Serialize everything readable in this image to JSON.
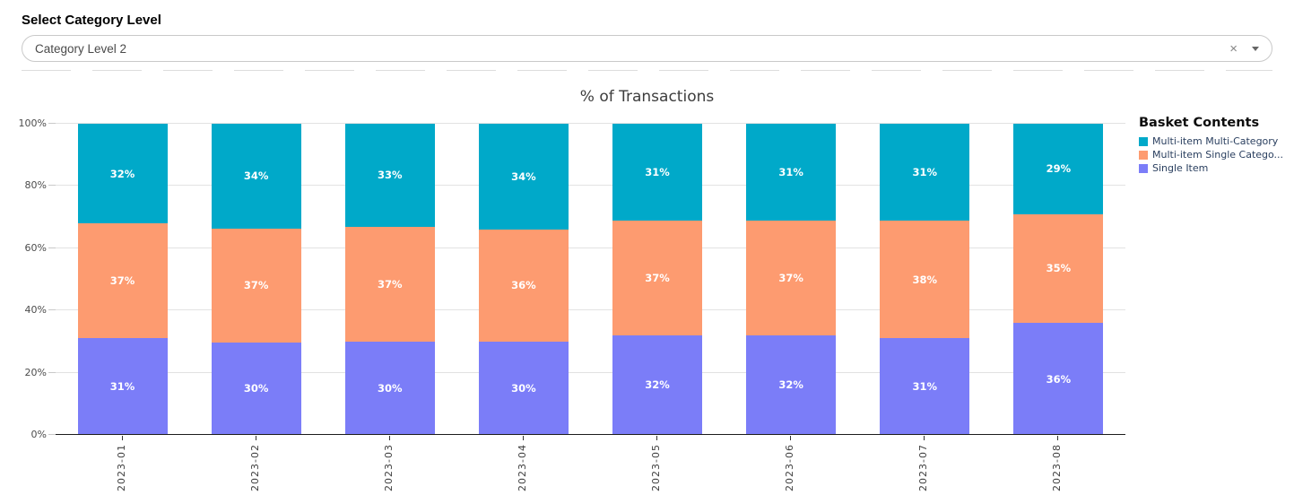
{
  "header": {
    "label": "Select Category Level",
    "dropdown": {
      "value": "Category Level 2",
      "clear_icon": "×"
    }
  },
  "chart_data": {
    "type": "bar",
    "stacked": true,
    "orientation": "vertical",
    "title": "% of Transactions",
    "legend_title": "Basket Contents",
    "legend_position": "right",
    "categories": [
      "2023-01",
      "2023-02",
      "2023-03",
      "2023-04",
      "2023-05",
      "2023-06",
      "2023-07",
      "2023-08"
    ],
    "series": [
      {
        "name": "Single Item",
        "color": "#7b7df8",
        "values": [
          31,
          30,
          30,
          30,
          32,
          32,
          31,
          36
        ]
      },
      {
        "name": "Multi-item Single Catego...",
        "color": "#fd9b70",
        "values": [
          37,
          37,
          37,
          36,
          37,
          37,
          38,
          35
        ]
      },
      {
        "name": "Multi-item Multi-Category",
        "color": "#00a9c9",
        "values": [
          32,
          34,
          33,
          34,
          31,
          31,
          31,
          29
        ]
      }
    ],
    "value_suffix": "%",
    "yaxis": {
      "tick_labels": [
        "0%",
        "20%",
        "40%",
        "60%",
        "80%",
        "100%"
      ],
      "range": [
        0,
        100
      ],
      "grid": true
    }
  }
}
